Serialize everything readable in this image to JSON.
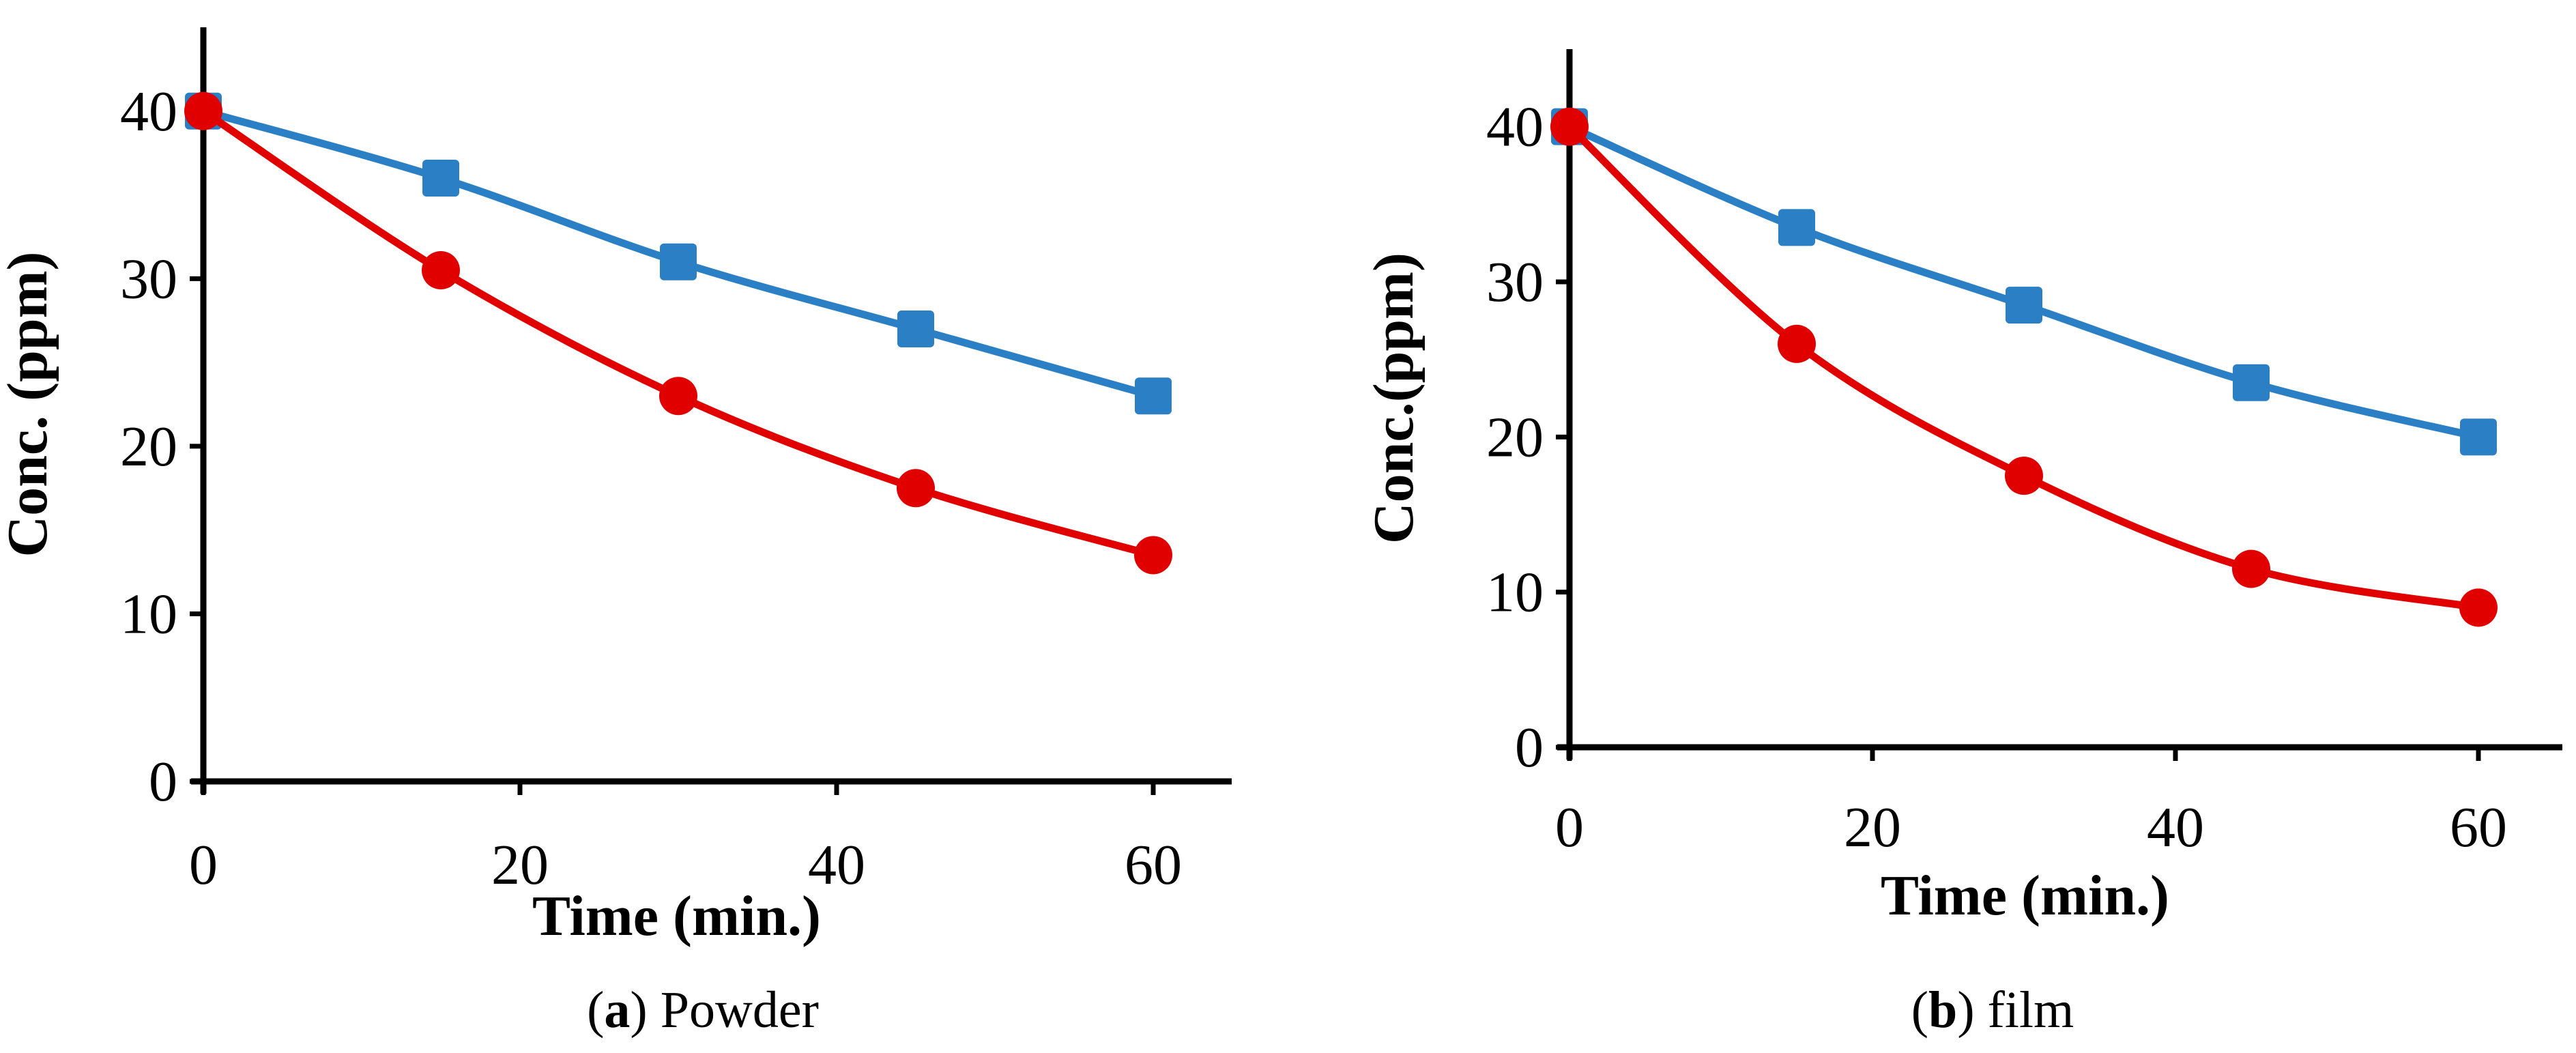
{
  "colors": {
    "series_blue": "#2b7fc4",
    "series_red": "#e00000",
    "axis": "#000000"
  },
  "chart_data": [
    {
      "type": "line",
      "panel": "a",
      "caption_letter": "a",
      "caption_text": "Powder",
      "xlabel": "Time (min.)",
      "ylabel": "Conc. (ppm)",
      "xlim": [
        0,
        65
      ],
      "ylim": [
        0,
        45
      ],
      "xticks": [
        0,
        20,
        40,
        60
      ],
      "yticks": [
        0,
        10,
        20,
        30,
        40
      ],
      "x": [
        0,
        15,
        30,
        45,
        60
      ],
      "series": [
        {
          "name": "blue-squares",
          "marker": "square",
          "values": [
            40,
            36,
            31,
            27,
            23
          ]
        },
        {
          "name": "red-circles",
          "marker": "circle",
          "values": [
            40,
            30.5,
            23,
            17.5,
            13.5
          ]
        }
      ]
    },
    {
      "type": "line",
      "panel": "b",
      "caption_letter": "b",
      "caption_text": "film",
      "xlabel": "Time (min.)",
      "ylabel": "Conc.(ppm)",
      "xlim": [
        0,
        65
      ],
      "ylim": [
        0,
        45
      ],
      "xticks": [
        0,
        20,
        40,
        60
      ],
      "yticks": [
        0,
        10,
        20,
        30,
        40
      ],
      "x": [
        0,
        15,
        30,
        45,
        60
      ],
      "series": [
        {
          "name": "blue-squares",
          "marker": "square",
          "values": [
            40,
            33.5,
            28.5,
            23.5,
            20
          ]
        },
        {
          "name": "red-circles",
          "marker": "circle",
          "values": [
            40,
            26,
            17.5,
            11.5,
            9
          ]
        }
      ]
    }
  ]
}
